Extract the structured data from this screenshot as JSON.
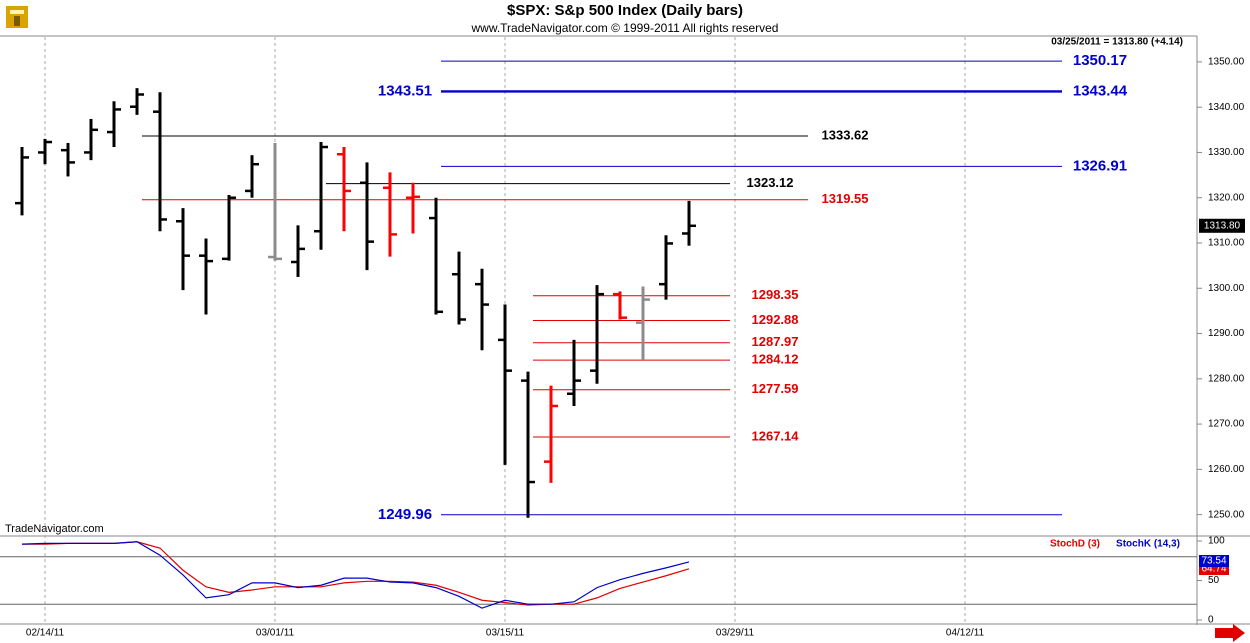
{
  "chart_data": {
    "type": "ohlc",
    "title": "$SPX:  S&p 500 Index  (Daily bars)",
    "subtitle": "www.TradeNavigator.com © 1999-2011 All rights reserved",
    "header": "03/25/2011 = 1313.80 (+4.14)",
    "watermark": "TradeNavigator.com",
    "categories": [
      null,
      "02/14/11",
      null,
      null,
      null,
      null,
      null,
      null,
      null,
      null,
      null,
      "03/01/11",
      null,
      null,
      null,
      null,
      null,
      null,
      null,
      null,
      null,
      "03/15/11",
      null,
      null,
      null,
      null,
      null,
      null,
      null,
      null,
      null,
      "03/29/11",
      null,
      null,
      null,
      null,
      null,
      null,
      null,
      null,
      null,
      "04/12/11"
    ],
    "open": [
      1318.8,
      1330.0,
      1330.5,
      1330.0,
      1334.5,
      1340.1,
      1339.0,
      1314.8,
      1307.2,
      1306.5,
      1321.5,
      1306.9,
      1305.8,
      1312.6,
      1329.6,
      1323.3,
      1322.2,
      1320.0,
      1315.5,
      1303.1,
      1300.9,
      1288.6,
      1279.6,
      1261.7,
      1276.7,
      1281.8,
      1298.7,
      1292.4,
      1300.9,
      1312.1,
      null,
      null,
      null,
      null,
      null,
      null,
      null,
      null,
      null,
      null,
      null,
      null
    ],
    "high": [
      1331.2,
      1333.0,
      1332.1,
      1337.4,
      1341.3,
      1344.2,
      1343.3,
      1317.7,
      1311.0,
      1320.6,
      1329.4,
      1332.1,
      1313.9,
      1332.3,
      1331.2,
      1327.8,
      1325.6,
      1323.3,
      1320.0,
      1308.1,
      1304.3,
      1296.4,
      1281.6,
      1278.5,
      1288.6,
      1300.7,
      1299.3,
      1300.4,
      1311.7,
      1319.3,
      null,
      null,
      null,
      null,
      null,
      null,
      null,
      null,
      null,
      null,
      null,
      null
    ],
    "low": [
      1316.1,
      1327.4,
      1324.7,
      1328.3,
      1331.2,
      1338.3,
      1312.6,
      1299.6,
      1294.2,
      1306.1,
      1320.0,
      1306.1,
      1302.5,
      1308.5,
      1312.6,
      1304.0,
      1307.0,
      1312.1,
      1294.2,
      1292.0,
      1286.3,
      1261.0,
      1249.3,
      1257.0,
      1274.0,
      1278.9,
      1293.1,
      1284.3,
      1297.5,
      1309.4,
      null,
      null,
      null,
      null,
      null,
      null,
      null,
      null,
      null,
      null,
      null,
      null
    ],
    "close": [
      1328.9,
      1332.3,
      1327.8,
      1335.0,
      1339.5,
      1342.8,
      1315.2,
      1307.2,
      1306.0,
      1320.0,
      1327.4,
      1306.5,
      1308.7,
      1331.2,
      1321.5,
      1310.3,
      1311.9,
      1320.2,
      1294.8,
      1293.1,
      1296.4,
      1281.8,
      1257.2,
      1274.0,
      1279.6,
      1298.7,
      1293.5,
      1297.5,
      1309.9,
      1313.8,
      null,
      null,
      null,
      null,
      null,
      null,
      null,
      null,
      null,
      null,
      null,
      null
    ],
    "bar_colors": [
      "#000000",
      "#000000",
      "#000000",
      "#000000",
      "#000000",
      "#000000",
      "#000000",
      "#000000",
      "#000000",
      "#000000",
      "#000000",
      "#8c8c8c",
      "#000000",
      "#000000",
      "#ff0000",
      "#000000",
      "#ff0000",
      "#ff0000",
      "#000000",
      "#000000",
      "#000000",
      "#000000",
      "#000000",
      "#ff0000",
      "#000000",
      "#000000",
      "#ff0000",
      "#8c8c8c",
      "#000000",
      "#000000",
      null,
      null,
      null,
      null,
      null,
      null,
      null,
      null,
      null,
      null,
      null,
      null
    ],
    "ylim": [
      1245.5,
      1355.5
    ],
    "yticks": [
      {
        "value": 1250,
        "label": "1250.00"
      },
      {
        "value": 1260,
        "label": "1260.00"
      },
      {
        "value": 1270,
        "label": "1270.00"
      },
      {
        "value": 1280,
        "label": "1280.00"
      },
      {
        "value": 1290,
        "label": "1290.00"
      },
      {
        "value": 1300,
        "label": "1300.00"
      },
      {
        "value": 1310,
        "label": "1310.00"
      },
      {
        "value": 1320,
        "label": "1320.00"
      },
      {
        "value": 1330,
        "label": "1330.00"
      },
      {
        "value": 1340,
        "label": "1340.00"
      },
      {
        "value": 1350,
        "label": "1350.00"
      }
    ],
    "last_price": {
      "value": 1313.8,
      "label": "1313.80"
    },
    "levels": [
      {
        "value": 1350.17,
        "color": "#0000cc"
      },
      {
        "value": 1343.51,
        "color": "#0000cc"
      },
      {
        "value": 1343.44,
        "color": "#0000cc"
      },
      {
        "value": 1333.62,
        "color": "#000000"
      },
      {
        "value": 1326.91,
        "color": "#0000cc"
      },
      {
        "value": 1323.12,
        "color": "#000000"
      },
      {
        "value": 1319.55,
        "color": "#e00000"
      },
      {
        "value": 1298.35,
        "color": "#e00000"
      },
      {
        "value": 1292.88,
        "color": "#e00000"
      },
      {
        "value": 1287.97,
        "color": "#e00000"
      },
      {
        "value": 1284.12,
        "color": "#e00000"
      },
      {
        "value": 1277.59,
        "color": "#e00000"
      },
      {
        "value": 1267.14,
        "color": "#e00000"
      },
      {
        "value": 1249.96,
        "color": "#0000cc"
      }
    ],
    "indicator": {
      "ylim": [
        0,
        100
      ],
      "yticks": [
        0,
        50,
        100
      ],
      "levels": [
        20,
        80
      ],
      "series": [
        {
          "name": "StochD (3)",
          "color": "#e00000",
          "values": [
            96,
            96,
            97,
            97,
            97,
            99,
            91,
            63,
            42,
            35,
            38,
            42,
            42,
            42,
            47,
            49,
            49,
            48,
            44,
            35,
            25,
            22,
            19,
            20,
            20,
            28,
            40,
            48,
            56,
            64.74,
            null,
            null,
            null,
            null,
            null,
            null,
            null,
            null,
            null,
            null,
            null,
            null
          ]
        },
        {
          "name": "StochK (14,3)",
          "color": "#0000cc",
          "values": [
            96,
            97,
            97,
            97,
            97,
            99,
            82,
            57,
            28,
            32,
            47,
            47,
            41,
            44,
            53,
            53,
            48,
            47,
            41,
            30,
            15,
            25,
            20,
            20,
            23,
            41,
            51,
            59,
            66,
            73.54,
            null,
            null,
            null,
            null,
            null,
            null,
            null,
            null,
            null,
            null,
            null,
            null
          ]
        }
      ]
    }
  }
}
